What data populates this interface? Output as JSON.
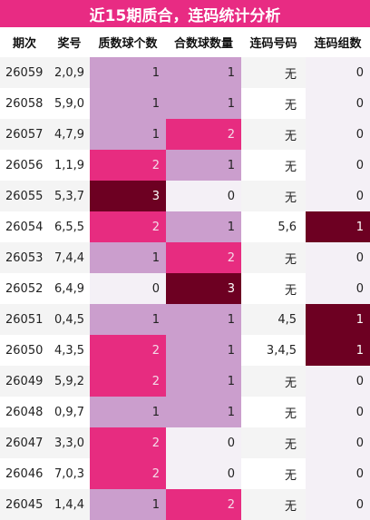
{
  "title": "近15期质合，连码统计分析",
  "headers": [
    "期次",
    "奖号",
    "质数球个数",
    "合数球数量",
    "连码号码",
    "连码组数"
  ],
  "rows": [
    {
      "issue": "26059",
      "award": "2,0,9",
      "prime": 1,
      "composite": 1,
      "consec": "无",
      "groups": 0
    },
    {
      "issue": "26058",
      "award": "5,9,0",
      "prime": 1,
      "composite": 1,
      "consec": "无",
      "groups": 0
    },
    {
      "issue": "26057",
      "award": "4,7,9",
      "prime": 1,
      "composite": 2,
      "consec": "无",
      "groups": 0
    },
    {
      "issue": "26056",
      "award": "1,1,9",
      "prime": 2,
      "composite": 1,
      "consec": "无",
      "groups": 0
    },
    {
      "issue": "26055",
      "award": "5,3,7",
      "prime": 3,
      "composite": 0,
      "consec": "无",
      "groups": 0
    },
    {
      "issue": "26054",
      "award": "6,5,5",
      "prime": 2,
      "composite": 1,
      "consec": "5,6",
      "groups": 1
    },
    {
      "issue": "26053",
      "award": "7,4,4",
      "prime": 1,
      "composite": 2,
      "consec": "无",
      "groups": 0
    },
    {
      "issue": "26052",
      "award": "6,4,9",
      "prime": 0,
      "composite": 3,
      "consec": "无",
      "groups": 0
    },
    {
      "issue": "26051",
      "award": "0,4,5",
      "prime": 1,
      "composite": 1,
      "consec": "4,5",
      "groups": 1
    },
    {
      "issue": "26050",
      "award": "4,3,5",
      "prime": 2,
      "composite": 1,
      "consec": "3,4,5",
      "groups": 1
    },
    {
      "issue": "26049",
      "award": "5,9,2",
      "prime": 2,
      "composite": 1,
      "consec": "无",
      "groups": 0
    },
    {
      "issue": "26048",
      "award": "0,9,7",
      "prime": 1,
      "composite": 1,
      "consec": "无",
      "groups": 0
    },
    {
      "issue": "26047",
      "award": "3,3,0",
      "prime": 2,
      "composite": 0,
      "consec": "无",
      "groups": 0
    },
    {
      "issue": "26046",
      "award": "7,0,3",
      "prime": 2,
      "composite": 0,
      "consec": "无",
      "groups": 0
    },
    {
      "issue": "26045",
      "award": "1,4,4",
      "prime": 1,
      "composite": 2,
      "consec": "无",
      "groups": 0
    }
  ],
  "heat_colors": {
    "level0": "#f4f0f6",
    "level1": "#cb9ecd",
    "level2": "#e72c80",
    "level3": "#6d0022"
  },
  "title_color": "#e82b83"
}
